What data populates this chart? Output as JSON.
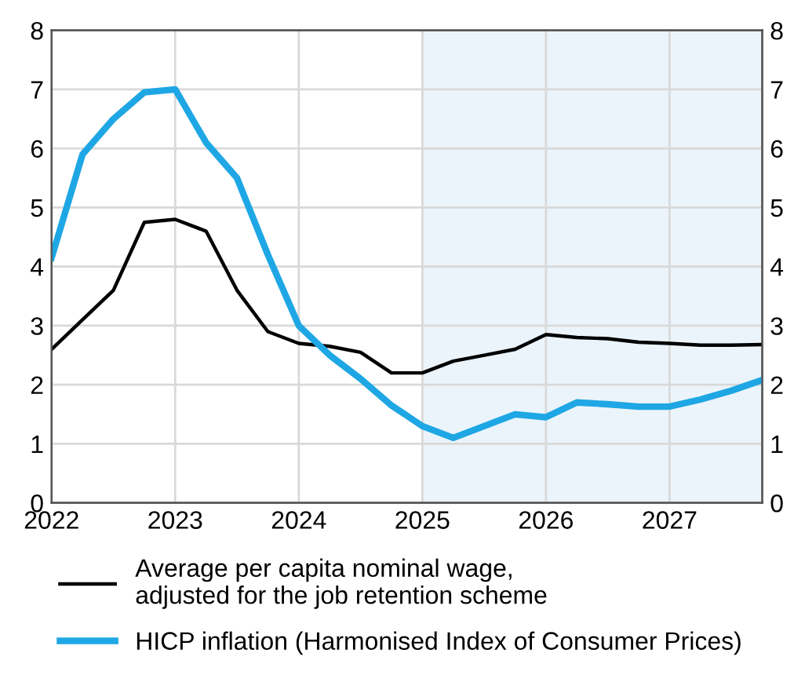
{
  "chart_data": {
    "type": "line",
    "x": [
      2022,
      2022.25,
      2022.5,
      2022.75,
      2023,
      2023.25,
      2023.5,
      2023.75,
      2024,
      2024.25,
      2024.5,
      2024.75,
      2025,
      2025.25,
      2025.5,
      2025.75,
      2026,
      2026.25,
      2026.5,
      2026.75,
      2027,
      2027.25,
      2027.5,
      2027.75
    ],
    "series": [
      {
        "name": "Average per capita nominal wage,\nadjusted for the job retention scheme",
        "color": "#000000",
        "values": [
          2.6,
          3.1,
          3.6,
          4.75,
          4.8,
          4.6,
          3.6,
          2.9,
          2.7,
          2.65,
          2.55,
          2.2,
          2.2,
          2.4,
          2.5,
          2.6,
          2.85,
          2.8,
          2.78,
          2.72,
          2.7,
          2.67,
          2.67,
          2.68
        ]
      },
      {
        "name": "HICP inflation (Harmonised Index of Consumer Prices)",
        "color": "#1ea7e4",
        "values": [
          4.15,
          5.9,
          6.5,
          6.95,
          7.0,
          6.1,
          5.5,
          4.2,
          3.0,
          2.5,
          2.1,
          1.65,
          1.3,
          1.1,
          1.3,
          1.5,
          1.45,
          1.7,
          1.67,
          1.63,
          1.63,
          1.75,
          1.9,
          2.08
        ]
      }
    ],
    "xlim": [
      2022,
      2027.75
    ],
    "xticks": [
      2022,
      2023,
      2024,
      2025,
      2026,
      2027
    ],
    "ylim": [
      0,
      8
    ],
    "yticks": [
      0,
      1,
      2,
      3,
      4,
      5,
      6,
      7,
      8
    ],
    "y2lim": [
      0,
      8
    ],
    "y2ticks": [
      0,
      1,
      2,
      3,
      4,
      5,
      6,
      7,
      8
    ],
    "bands": [
      {
        "axis": "x",
        "from": 2025,
        "to": 2027.75,
        "color": "#ebf4fb"
      }
    ],
    "grid": true,
    "legend": "bottom",
    "marker": "none",
    "line_style": "solid"
  }
}
